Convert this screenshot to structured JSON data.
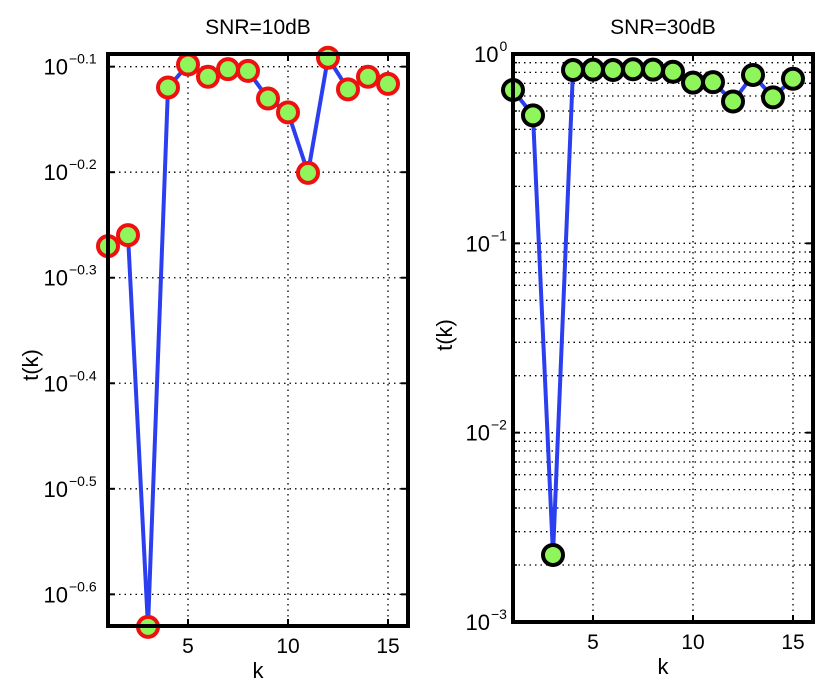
{
  "chart_data": [
    {
      "type": "line",
      "title": "SNR=10dB",
      "xlabel": "k",
      "ylabel": "t(k)",
      "yscale": "log",
      "xlim": [
        1,
        16
      ],
      "ylim_log10": [
        -0.63,
        -0.088
      ],
      "xticks": [
        5,
        10,
        15
      ],
      "x_tick_labels": [
        "5",
        "10",
        "15"
      ],
      "y_tick_base": "10",
      "yticks_log10": [
        -0.1,
        -0.2,
        -0.3,
        -0.4,
        -0.5,
        -0.6
      ],
      "y_tick_exponents": [
        "−0.1",
        "−0.2",
        "−0.3",
        "−0.4",
        "−0.5",
        "−0.6"
      ],
      "grid": true,
      "marker_face": "#8ef55a",
      "marker_edge": "#ef1010",
      "line_color": "#2b3ff0",
      "series": [
        {
          "name": "t(k)",
          "x": [
            1,
            2,
            3,
            4,
            5,
            6,
            7,
            8,
            9,
            10,
            11,
            12,
            13,
            14,
            15
          ],
          "values": [
            0.537,
            0.55,
            0.234,
            0.759,
            0.798,
            0.777,
            0.79,
            0.787,
            0.741,
            0.719,
            0.63,
            0.81,
            0.756,
            0.777,
            0.765
          ]
        }
      ]
    },
    {
      "type": "line",
      "title": "SNR=30dB",
      "xlabel": "k",
      "ylabel": "t(k)",
      "yscale": "log",
      "xlim": [
        1,
        16
      ],
      "ylim_log10": [
        -3,
        0
      ],
      "xticks": [
        5,
        10,
        15
      ],
      "x_tick_labels": [
        "5",
        "10",
        "15"
      ],
      "y_tick_base": "10",
      "yticks_log10": [
        0,
        -1,
        -2,
        -3
      ],
      "y_tick_exponents": [
        "0",
        "−1",
        "−2",
        "−3"
      ],
      "grid": true,
      "marker_face": "#8ef55a",
      "marker_edge": "#000000",
      "line_color": "#2b3ff0",
      "series": [
        {
          "name": "t(k)",
          "x": [
            1,
            2,
            3,
            4,
            5,
            6,
            7,
            8,
            9,
            10,
            11,
            12,
            13,
            14,
            15
          ],
          "values": [
            0.645,
            0.474,
            0.00226,
            0.823,
            0.827,
            0.823,
            0.831,
            0.827,
            0.806,
            0.706,
            0.71,
            0.561,
            0.775,
            0.59,
            0.74
          ]
        }
      ]
    }
  ]
}
